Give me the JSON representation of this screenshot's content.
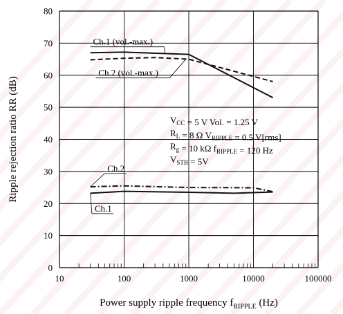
{
  "chart_data": {
    "type": "line",
    "xscale": "log",
    "xlim": [
      10,
      100000
    ],
    "ylim": [
      0,
      80
    ],
    "grid": true,
    "x_ticks": [
      10,
      100,
      1000,
      10000,
      100000
    ],
    "x_tick_labels": [
      "10",
      "100",
      "1000",
      "10000",
      "100000"
    ],
    "y_ticks": [
      0,
      10,
      20,
      30,
      40,
      50,
      60,
      70,
      80
    ],
    "y_tick_labels": [
      "0",
      "10",
      "20",
      "30",
      "40",
      "50",
      "60",
      "70",
      "80"
    ],
    "xlabel": "Power supply ripple frequency  fRIPPLE  (Hz)",
    "xlabel_parts": {
      "main": "Power supply ripple frequency  f",
      "sub": "RIPPLE",
      "unit": "  (Hz)"
    },
    "ylabel": "Ripple rejection ratio  RR  (dB)",
    "series": [
      {
        "name": "Ch.1 (vol.-max.)",
        "style": "solid",
        "x": [
          30,
          100,
          1000,
          20000
        ],
        "y": [
          67,
          67.2,
          66.5,
          53
        ]
      },
      {
        "name": "Ch.2 (vol.-max.)",
        "style": "dashed",
        "x": [
          30,
          100,
          300,
          1000,
          20000
        ],
        "y": [
          64.8,
          65.3,
          65.5,
          65,
          58
        ]
      },
      {
        "name": "Ch.2",
        "style": "dashdot",
        "x": [
          30,
          100,
          1000,
          10000,
          20000
        ],
        "y": [
          25.2,
          25.5,
          25,
          24.9,
          23.7
        ]
      },
      {
        "name": "Ch.1",
        "style": "solid",
        "x": [
          30,
          100,
          1000,
          5000,
          20000
        ],
        "y": [
          23.2,
          23.8,
          23.5,
          23.2,
          23.6
        ]
      }
    ],
    "series_labels": [
      {
        "text": "Ch.1 (vol.-max.)",
        "x": 33,
        "y": 69.5,
        "leader_to": [
          430,
          66.8
        ]
      },
      {
        "text": "Ch.2 (vol.-max.)",
        "x": 40,
        "y": 59.8,
        "leader_to": [
          900,
          65
        ]
      },
      {
        "text": "Ch.2",
        "x": 55,
        "y": 30,
        "leader_to": [
          30,
          25.2
        ]
      },
      {
        "text": "Ch.1",
        "x": 35,
        "y": 17.5,
        "leader_to": [
          30,
          23.2
        ]
      }
    ],
    "conditions": [
      [
        {
          "t": "V"
        },
        {
          "t": "CC",
          "sub": true
        },
        {
          "t": " = 5 V   Vol. = 1.25 V"
        }
      ],
      [
        {
          "t": "R"
        },
        {
          "t": "L",
          "sub": true
        },
        {
          "t": " = 8 Ω    V"
        },
        {
          "t": "RIPPLE",
          "sub": true
        },
        {
          "t": " = 0.5 V[rms]"
        }
      ],
      [
        {
          "t": "R"
        },
        {
          "t": "g",
          "sub": true
        },
        {
          "t": " = 10 kΩ  f"
        },
        {
          "t": "RIPPLE",
          "sub": true
        },
        {
          "t": " = 120 Hz"
        }
      ],
      [
        {
          "t": "V"
        },
        {
          "t": "STB",
          "sub": true
        },
        {
          "t": " = 5V"
        }
      ]
    ],
    "conditions_text": [
      "VCC = 5 V   Vol. = 1.25 V",
      "RL = 8 Ω    VRIPPLE = 0.5 V[rms]",
      "Rg = 10 kΩ  fRIPPLE = 120 Hz",
      "VSTB = 5V"
    ],
    "colors": {
      "line": "#111111",
      "grid": "#000000",
      "watermark": "#f2b9b9"
    }
  }
}
